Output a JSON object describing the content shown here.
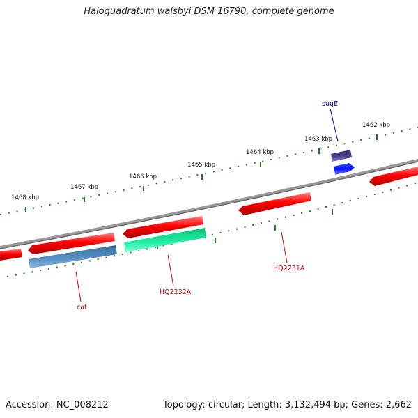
{
  "title": "Haloquadratum walsbyi DSM 16790, complete genome",
  "footer": {
    "accession": "Accession: NC_008212",
    "topology": "Topology: circular; Length: 3,132,494 bp; Genes: 2,662"
  },
  "ticks": [
    {
      "label": "1468 kbp"
    },
    {
      "label": "1467 kbp"
    },
    {
      "label": "1466 kbp"
    },
    {
      "label": "1465 kbp"
    },
    {
      "label": "1464 kbp"
    },
    {
      "label": "1463 kbp"
    },
    {
      "label": "1462 kbp"
    }
  ],
  "gene_labels": {
    "sugE": "sugE",
    "cat": "cat",
    "hq2232a": "HQ2232A",
    "hq2231a": "HQ2231A"
  },
  "colors": {
    "backbone": "#8c8c8c",
    "tick": "#1e7a1e",
    "gene_red": "#ff0000",
    "gene_steelblue": "#4a86c0",
    "gene_green": "#19e89a",
    "gene_purple": "#4a3f8c",
    "gene_blue": "#0a1aff",
    "label_red": "#cc0000",
    "label_blue": "#0000cc"
  }
}
